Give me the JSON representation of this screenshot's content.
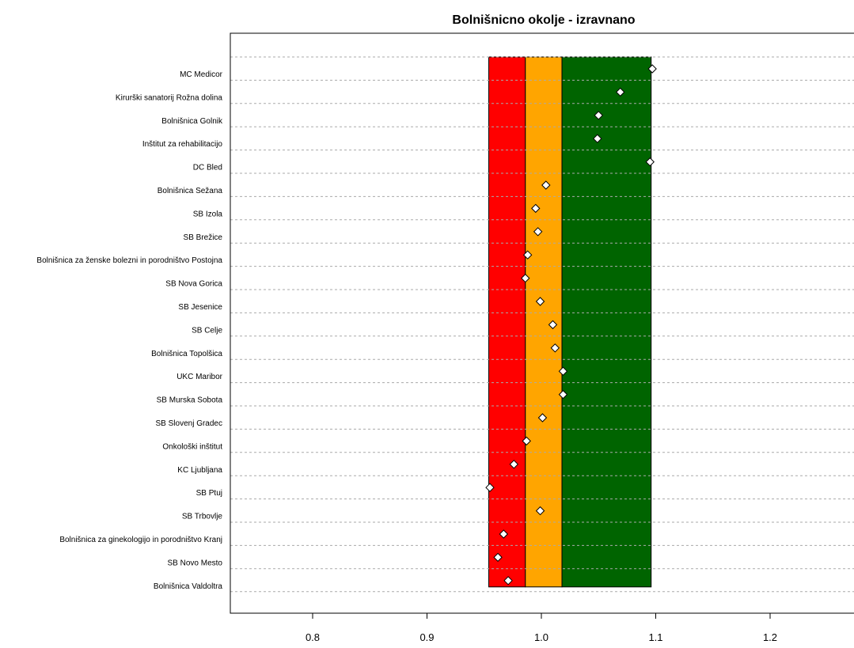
{
  "chart_data": {
    "type": "scatter",
    "title": "Bolnišnicno okolje - izravnano",
    "xlabel": "",
    "ylabel": "",
    "xlim": [
      0.73,
      1.27
    ],
    "x_ticks": [
      "0.8",
      "0.9",
      "1.0",
      "1.1",
      "1.2"
    ],
    "x_tick_values": [
      0.8,
      0.9,
      1.0,
      1.1,
      1.2
    ],
    "grid": "horizontal dashed",
    "bands": [
      {
        "from": 0.954,
        "to": 0.986,
        "color": "#ff0000"
      },
      {
        "from": 0.986,
        "to": 1.018,
        "color": "#ffa500"
      },
      {
        "from": 1.018,
        "to": 1.096,
        "color": "#006400"
      }
    ],
    "categories": [
      "MC Medicor",
      "Kirurški sanatorij Rožna dolina",
      "Bolnišnica Golnik",
      "Inštitut za rehabilitacijo",
      "DC Bled",
      "Bolnišnica Sežana",
      "SB Izola",
      "SB Brežice",
      "Bolnišnica za ženske bolezni in porodništvo Postojna",
      "SB Nova Gorica",
      "SB Jesenice",
      "SB Celje",
      "Bolnišnica Topolšica",
      "UKC Maribor",
      "SB Murska Sobota",
      "SB Slovenj Gradec",
      "Onkološki inštitut",
      "KC Ljubljana",
      "SB Ptuj",
      "SB Trbovlje",
      "Bolnišnica za ginekologijo in porodništvo Kranj",
      "SB Novo Mesto",
      "Bolnišnica Valdoltra"
    ],
    "values": [
      1.097,
      1.069,
      1.05,
      1.049,
      1.095,
      1.004,
      0.995,
      0.997,
      0.988,
      0.986,
      0.999,
      1.01,
      1.012,
      1.019,
      1.019,
      1.001,
      0.987,
      0.976,
      0.955,
      0.999,
      0.967,
      0.962,
      0.971
    ],
    "marker": {
      "shape": "diamond",
      "fill": "#ffffff",
      "stroke": "#000000"
    }
  }
}
